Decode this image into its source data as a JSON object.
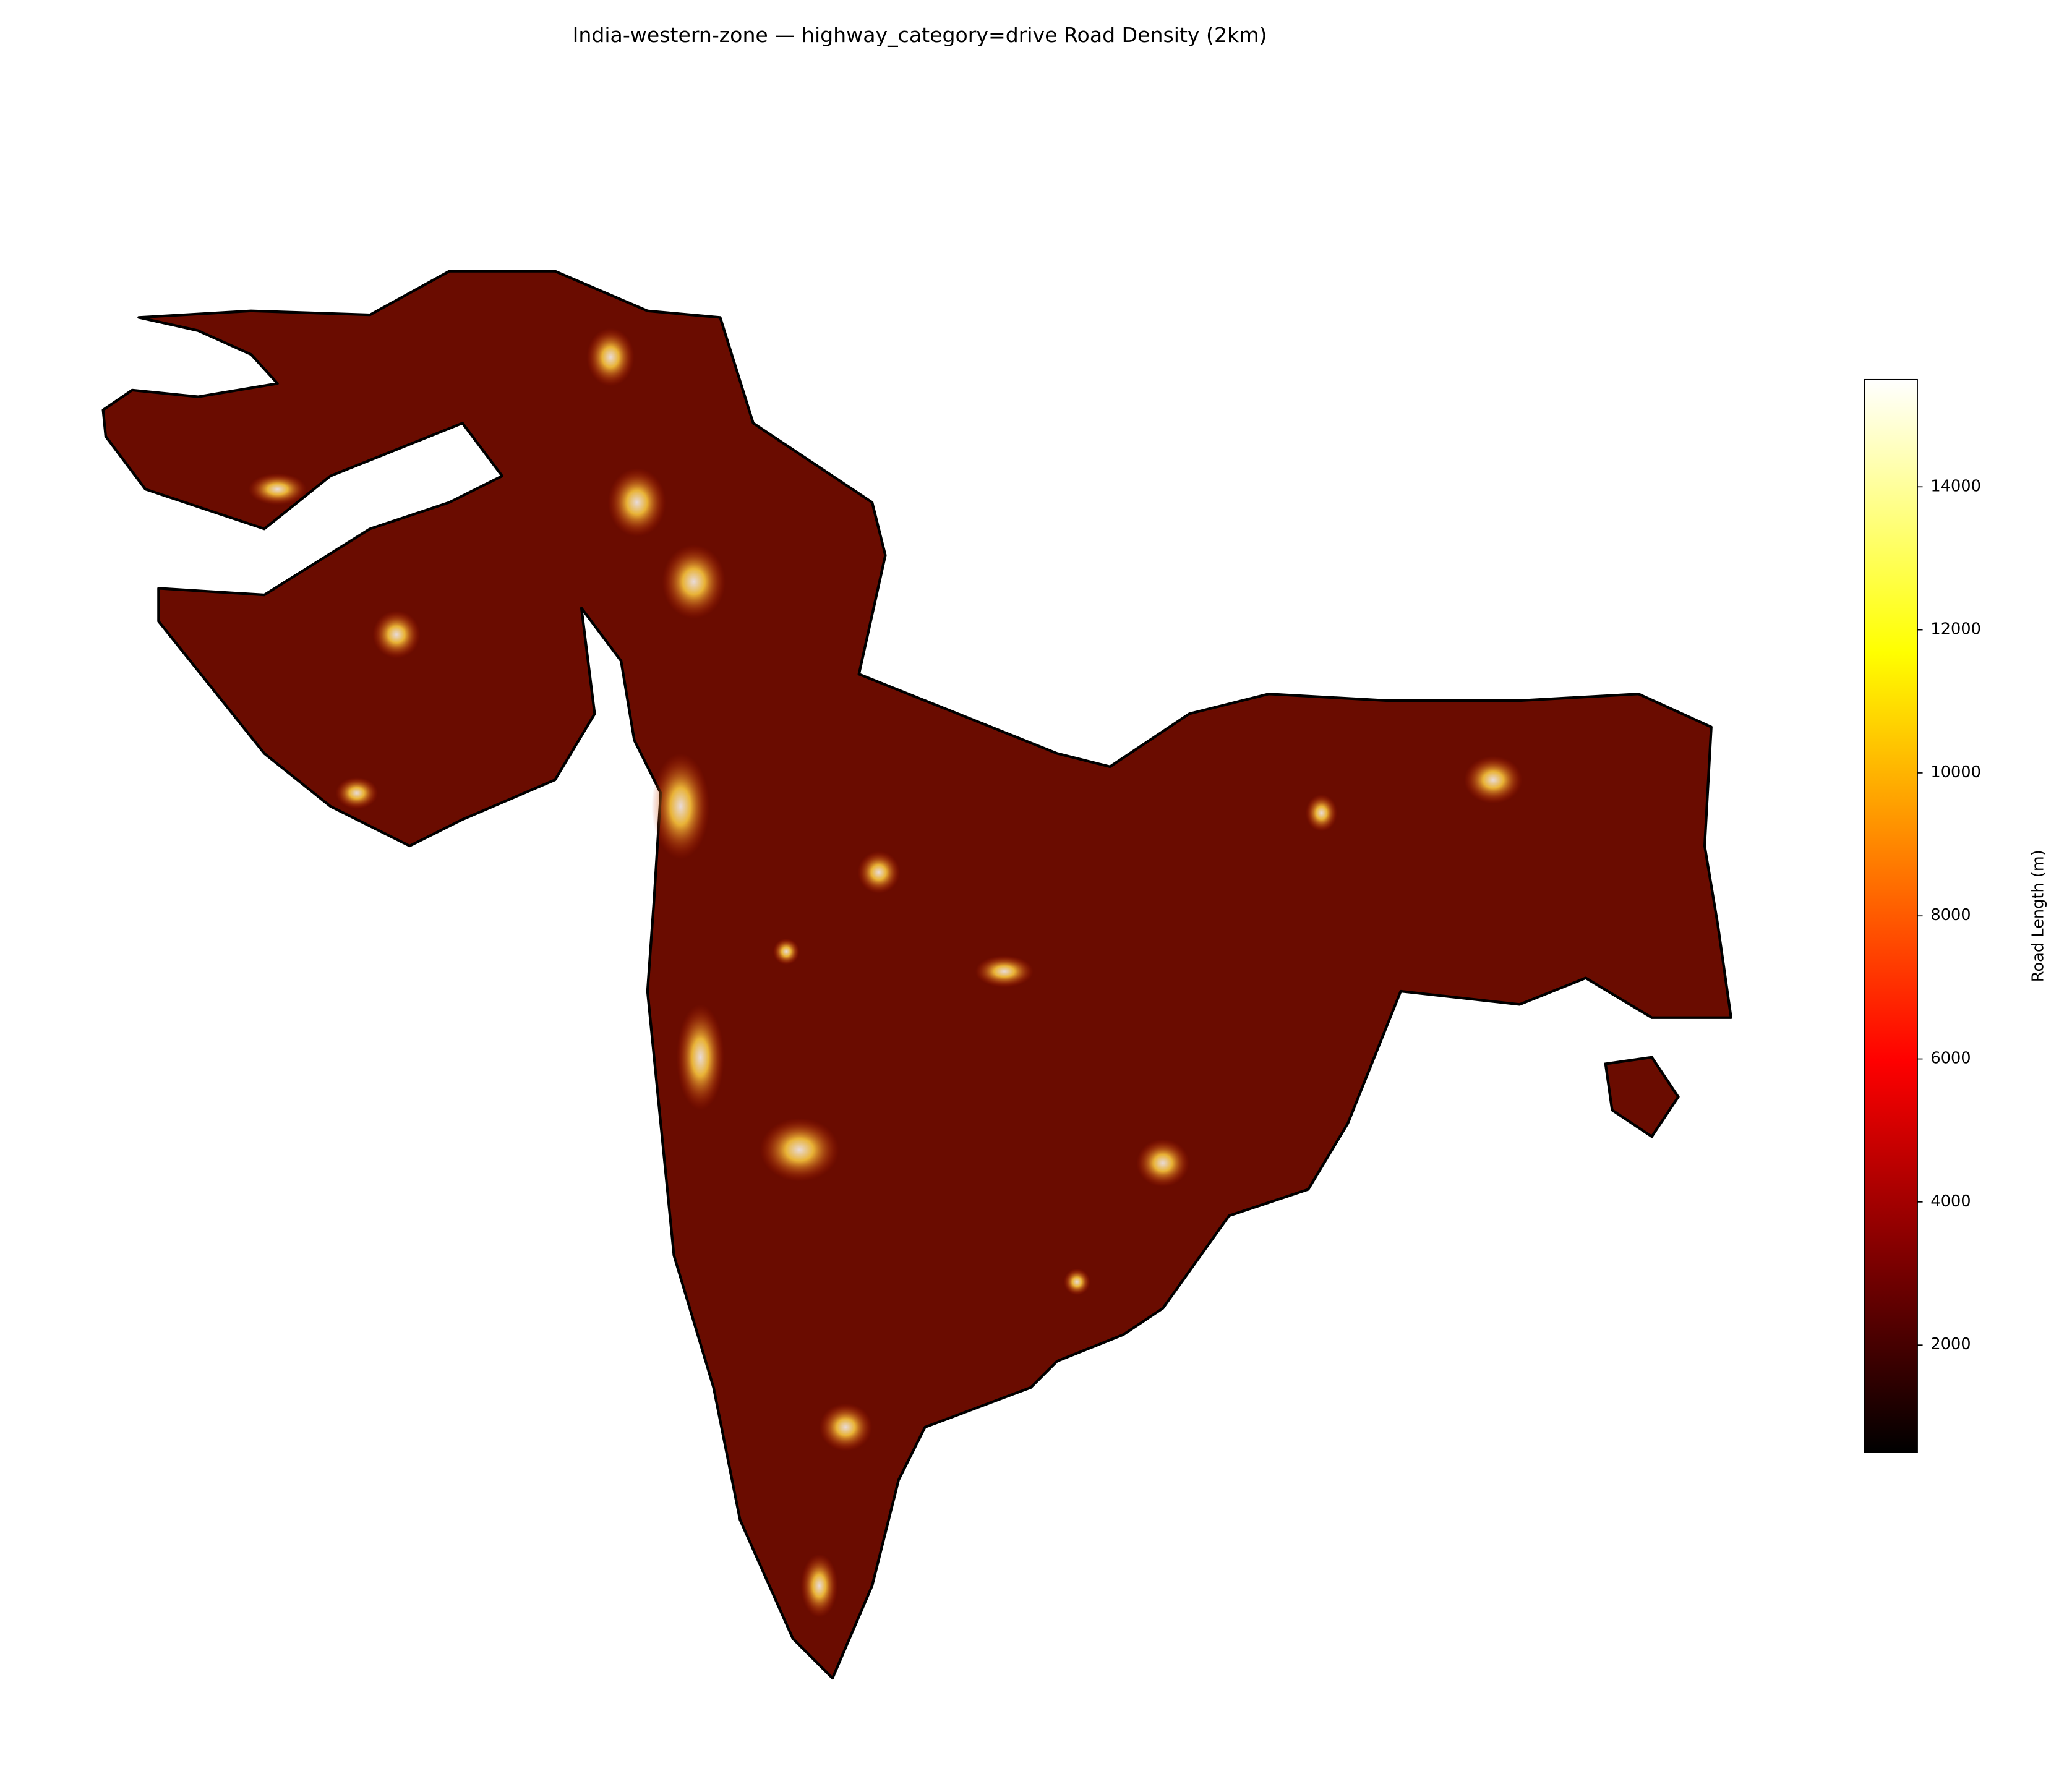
{
  "chart_data": {
    "type": "map",
    "title": "India-western-zone — highway_category=drive Road Density (2km)",
    "colorbar": {
      "label": "Road Length (m)",
      "lim": [
        500,
        15500
      ],
      "ticks": [
        2000,
        4000,
        6000,
        8000,
        10000,
        12000,
        14000
      ],
      "colormap": "hot"
    }
  }
}
